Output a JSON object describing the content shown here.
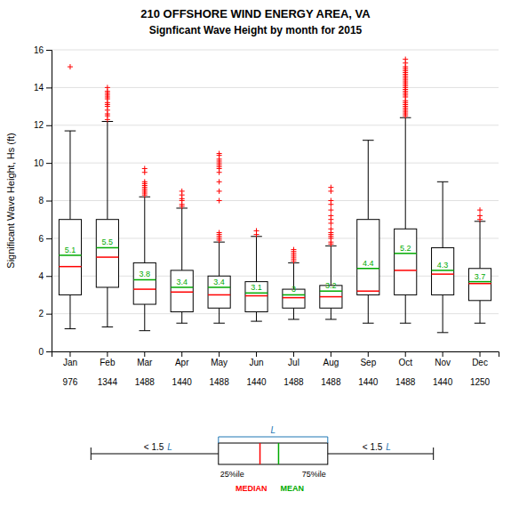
{
  "chart_data": {
    "type": "box",
    "title": "210   OFFSHORE WIND ENERGY AREA, VA",
    "subtitle": "Signficant Wave Height by month for 2015",
    "ylabel": "Significant Wave Height, Hs (ft)",
    "categories": [
      "Jan",
      "Feb",
      "Mar",
      "Apr",
      "May",
      "Jun",
      "Jul",
      "Aug",
      "Sep",
      "Oct",
      "Nov",
      "Dec"
    ],
    "counts": [
      976,
      1344,
      1488,
      1440,
      1488,
      1440,
      1488,
      1488,
      1440,
      1488,
      1440,
      1250
    ],
    "series": [
      {
        "name": "25%ile",
        "values": [
          3.0,
          3.4,
          2.5,
          2.1,
          2.3,
          2.1,
          2.3,
          2.3,
          3.0,
          3.0,
          3.0,
          2.7
        ]
      },
      {
        "name": "MEDIAN",
        "color": "#ff0000",
        "values": [
          4.5,
          5.0,
          3.3,
          3.15,
          3.0,
          2.95,
          2.85,
          2.9,
          3.2,
          4.3,
          4.1,
          3.6
        ]
      },
      {
        "name": "MEAN",
        "color": "#00aa00",
        "data_labels": true,
        "values": [
          5.1,
          5.5,
          3.8,
          3.4,
          3.4,
          3.1,
          3.0,
          3.2,
          4.4,
          5.2,
          4.3,
          3.7
        ]
      },
      {
        "name": "75%ile",
        "values": [
          7.0,
          7.0,
          4.7,
          4.3,
          4.0,
          3.7,
          3.3,
          3.5,
          7.0,
          6.5,
          5.5,
          4.4
        ]
      }
    ],
    "whislo": [
      1.2,
      1.3,
      1.1,
      1.5,
      1.5,
      1.6,
      1.7,
      1.7,
      1.5,
      1.5,
      1.0,
      1.5
    ],
    "whishi": [
      11.7,
      12.2,
      8.2,
      7.6,
      5.8,
      6.1,
      4.7,
      5.6,
      11.2,
      12.4,
      9.0,
      6.9
    ],
    "outliers": {
      "color": "#ff0000",
      "values": [
        [
          15.1
        ],
        [
          12.3,
          12.5,
          12.6,
          12.8,
          13.0,
          13.1,
          13.2,
          13.4,
          13.5,
          13.6,
          13.7,
          13.8,
          14.0
        ],
        [
          8.3,
          8.4,
          8.5,
          8.6,
          8.7,
          8.8,
          8.9,
          9.0,
          9.5,
          9.7
        ],
        [
          7.7,
          7.8,
          8.0,
          8.1,
          8.3,
          8.5
        ],
        [
          5.9,
          6.0,
          6.1,
          6.2,
          6.3,
          8.0,
          8.5,
          9.0,
          9.5,
          9.7,
          9.8,
          9.9,
          10.0,
          10.1,
          10.2,
          10.4,
          10.5
        ],
        [
          6.2,
          6.4
        ],
        [
          4.8,
          4.9,
          5.0,
          5.1,
          5.2,
          5.3,
          5.4
        ],
        [
          5.7,
          5.8,
          6.0,
          6.1,
          6.2,
          6.3,
          6.5,
          6.8,
          7.0,
          7.2,
          7.5,
          7.8,
          8.0,
          8.5,
          8.7
        ],
        [],
        [
          12.5,
          12.6,
          12.7,
          12.8,
          12.9,
          13.0,
          13.1,
          13.2,
          13.3,
          13.5,
          13.6,
          13.7,
          13.8,
          13.9,
          14.0,
          14.1,
          14.2,
          14.3,
          14.4,
          14.5,
          14.6,
          14.7,
          14.8,
          14.9,
          15.0,
          15.1,
          15.3,
          15.5
        ],
        [],
        [
          7.0,
          7.2,
          7.5
        ]
      ]
    },
    "annotations": [
      "L",
      "< 1.5",
      "L",
      "< 1.5",
      "L"
    ],
    "ylim": [
      0,
      16
    ],
    "yticks": [
      0,
      2,
      4,
      6,
      8,
      10,
      12,
      14,
      16
    ],
    "grid": true
  }
}
